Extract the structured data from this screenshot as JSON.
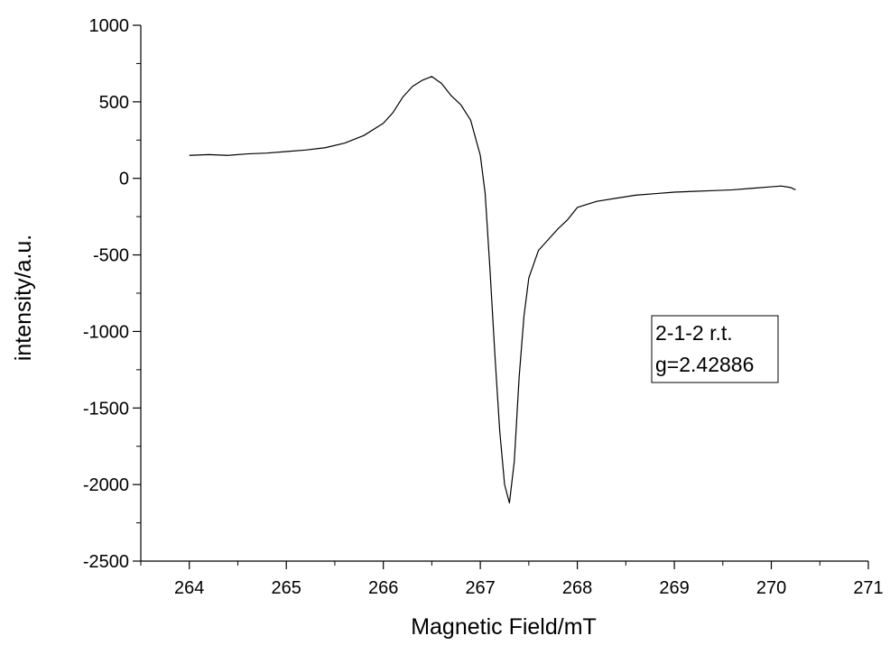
{
  "chart_data": {
    "type": "line",
    "xlabel": "Magnetic Field/mT",
    "ylabel": "intensity/a.u.",
    "xlim": [
      263.5,
      271
    ],
    "ylim": [
      -2500,
      1000
    ],
    "x_ticks": [
      264,
      265,
      266,
      267,
      268,
      269,
      270,
      271
    ],
    "y_ticks": [
      1000,
      500,
      0,
      -500,
      -1000,
      -1500,
      -2000,
      -2500
    ],
    "x_tick_labels": [
      "264",
      "265",
      "266",
      "267",
      "268",
      "269",
      "270",
      "271"
    ],
    "y_tick_labels": [
      "1000",
      "500",
      "0",
      "-500",
      "-1000",
      "-1500",
      "-2000",
      "-2500"
    ],
    "grid": false,
    "legend_position": "right",
    "annotation": {
      "line1": "2-1-2 r.t.",
      "line2": "g=2.42886"
    },
    "series": [
      {
        "color": "#000000",
        "points": [
          [
            264.0,
            150
          ],
          [
            264.2,
            155
          ],
          [
            264.4,
            150
          ],
          [
            264.6,
            160
          ],
          [
            264.8,
            165
          ],
          [
            265.0,
            175
          ],
          [
            265.2,
            185
          ],
          [
            265.4,
            200
          ],
          [
            265.6,
            230
          ],
          [
            265.8,
            280
          ],
          [
            266.0,
            360
          ],
          [
            266.1,
            430
          ],
          [
            266.2,
            530
          ],
          [
            266.3,
            600
          ],
          [
            266.4,
            640
          ],
          [
            266.5,
            665
          ],
          [
            266.6,
            620
          ],
          [
            266.7,
            540
          ],
          [
            266.8,
            480
          ],
          [
            266.9,
            380
          ],
          [
            267.0,
            150
          ],
          [
            267.05,
            -100
          ],
          [
            267.1,
            -600
          ],
          [
            267.15,
            -1150
          ],
          [
            267.2,
            -1650
          ],
          [
            267.25,
            -2000
          ],
          [
            267.3,
            -2120
          ],
          [
            267.35,
            -1850
          ],
          [
            267.4,
            -1300
          ],
          [
            267.45,
            -900
          ],
          [
            267.5,
            -650
          ],
          [
            267.6,
            -470
          ],
          [
            267.7,
            -400
          ],
          [
            267.8,
            -330
          ],
          [
            267.9,
            -270
          ],
          [
            268.0,
            -190
          ],
          [
            268.2,
            -150
          ],
          [
            268.4,
            -130
          ],
          [
            268.6,
            -110
          ],
          [
            268.8,
            -100
          ],
          [
            269.0,
            -90
          ],
          [
            269.2,
            -85
          ],
          [
            269.4,
            -80
          ],
          [
            269.6,
            -75
          ],
          [
            269.8,
            -65
          ],
          [
            270.0,
            -55
          ],
          [
            270.1,
            -50
          ],
          [
            270.2,
            -60
          ],
          [
            270.25,
            -75
          ]
        ]
      }
    ]
  }
}
